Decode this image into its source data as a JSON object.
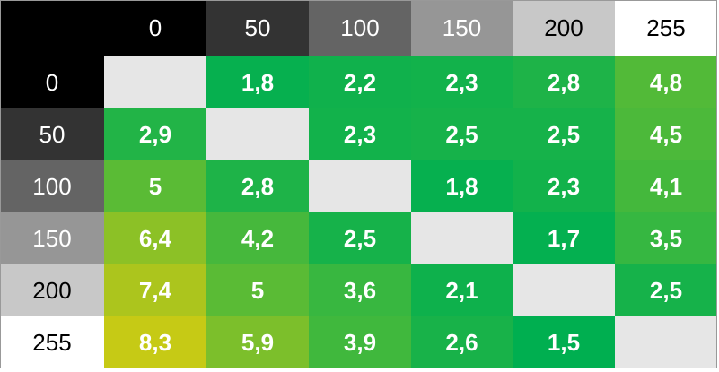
{
  "table": {
    "corner_color": "#000000",
    "empty_color": "#e6e6e6",
    "header": [
      {
        "text": "0",
        "color": "#000000",
        "text_color": "#ffffff"
      },
      {
        "text": "50",
        "color": "#333333",
        "text_color": "#ffffff"
      },
      {
        "text": "100",
        "color": "#646464",
        "text_color": "#ffffff"
      },
      {
        "text": "150",
        "color": "#969696",
        "text_color": "#ffffff"
      },
      {
        "text": "200",
        "color": "#c8c8c8",
        "text_color": "#000000"
      },
      {
        "text": "255",
        "color": "#ffffff",
        "text_color": "#000000"
      }
    ],
    "rows": [
      {
        "label": {
          "text": "0",
          "color": "#000000",
          "text_color": "#ffffff"
        },
        "cells": [
          null,
          {
            "text": "1,8",
            "color": "#06b04f"
          },
          {
            "text": "2,2",
            "color": "#10b14c"
          },
          {
            "text": "2,3",
            "color": "#12b24b"
          },
          {
            "text": "2,8",
            "color": "#1eb348"
          },
          {
            "text": "4,8",
            "color": "#52ba38"
          }
        ]
      },
      {
        "label": {
          "text": "50",
          "color": "#333333",
          "text_color": "#ffffff"
        },
        "cells": [
          {
            "text": "2,9",
            "color": "#22b447"
          },
          null,
          {
            "text": "2,3",
            "color": "#12b24b"
          },
          {
            "text": "2,5",
            "color": "#16b24a"
          },
          {
            "text": "2,5",
            "color": "#16b24a"
          },
          {
            "text": "4,5",
            "color": "#4cb93a"
          }
        ]
      },
      {
        "label": {
          "text": "100",
          "color": "#646464",
          "text_color": "#ffffff"
        },
        "cells": [
          {
            "text": "5",
            "color": "#5abb35"
          },
          {
            "text": "2,8",
            "color": "#1eb348"
          },
          null,
          {
            "text": "1,8",
            "color": "#06b04f"
          },
          {
            "text": "2,3",
            "color": "#12b24b"
          },
          {
            "text": "4,1",
            "color": "#44b83c"
          }
        ]
      },
      {
        "label": {
          "text": "150",
          "color": "#969696",
          "text_color": "#ffffff"
        },
        "cells": [
          {
            "text": "6,4",
            "color": "#8cc126"
          },
          {
            "text": "4,2",
            "color": "#46b83c"
          },
          {
            "text": "2,5",
            "color": "#16b24a"
          },
          null,
          {
            "text": "1,7",
            "color": "#04b050"
          },
          {
            "text": "3,5",
            "color": "#36b741"
          }
        ]
      },
      {
        "label": {
          "text": "200",
          "color": "#c8c8c8",
          "text_color": "#000000"
        },
        "cells": [
          {
            "text": "7,4",
            "color": "#acc51d"
          },
          {
            "text": "5",
            "color": "#5abb35"
          },
          {
            "text": "3,6",
            "color": "#38b740"
          },
          {
            "text": "2,1",
            "color": "#0eb14c"
          },
          null,
          {
            "text": "2,5",
            "color": "#16b24a"
          }
        ]
      },
      {
        "label": {
          "text": "255",
          "color": "#ffffff",
          "text_color": "#000000"
        },
        "cells": [
          {
            "text": "8,3",
            "color": "#c6ca15"
          },
          {
            "text": "5,9",
            "color": "#7cbf2b"
          },
          {
            "text": "3,9",
            "color": "#40b83d"
          },
          {
            "text": "2,6",
            "color": "#18b249"
          },
          {
            "text": "1,5",
            "color": "#00af50"
          },
          null
        ]
      }
    ]
  }
}
